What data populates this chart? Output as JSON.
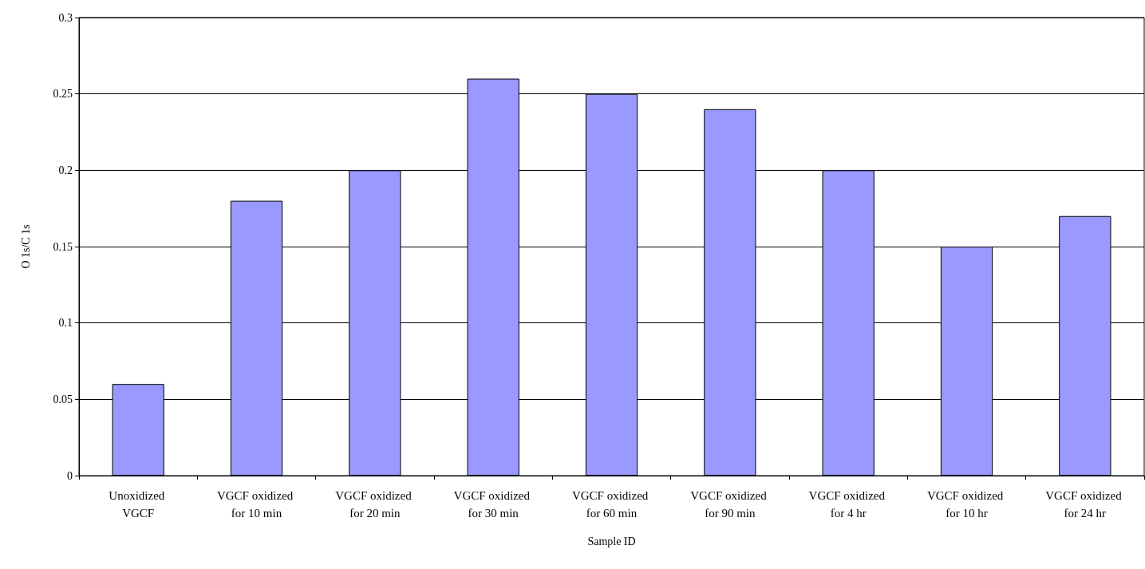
{
  "chart_data": {
    "type": "bar",
    "xlabel": "Sample ID",
    "ylabel": "O 1s/C 1s",
    "categories": [
      "Unoxidized VGCF",
      "VGCF oxidized for 10 min",
      "VGCF oxidized for 20 min",
      "VGCF oxidized for 30 min",
      "VGCF oxidized for 60 min",
      "VGCF oxidized for 90 min",
      "VGCF oxidized for 4 hr",
      "VGCF oxidized for 10 hr",
      "VGCF oxidized for 24 hr"
    ],
    "values": [
      0.06,
      0.18,
      0.2,
      0.26,
      0.25,
      0.24,
      0.2,
      0.15,
      0.17
    ],
    "color": "#9999ff",
    "ylim": [
      0,
      0.3
    ],
    "yticks": [
      0,
      0.05,
      0.1,
      0.15,
      0.2,
      0.25,
      0.3
    ],
    "grid": "y"
  }
}
